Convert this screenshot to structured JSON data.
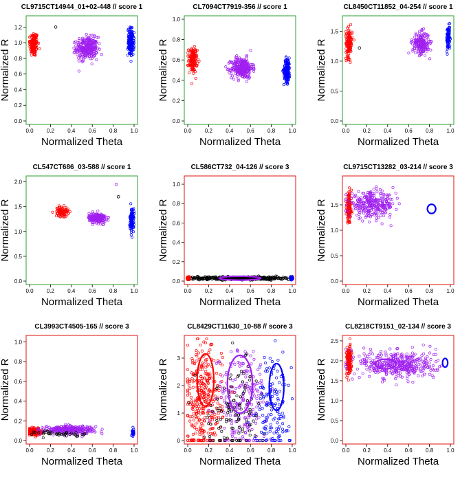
{
  "figure": {
    "description_type": "grid-of-genotype-cluster-plots",
    "colors": {
      "AA": "#ff0000",
      "AB": "#a020f0",
      "BB": "#0000ff",
      "unassigned": "#000000",
      "score1_frame": "#4caf50",
      "score3_frame": "#e53935"
    }
  },
  "chart_data": [
    {
      "type": "scatter",
      "title": "CL9715CT14944_01+02-448  // score  1",
      "xlabel": "Normalized Theta",
      "ylabel": "Normalized R",
      "xlim": [
        0,
        1
      ],
      "ylim": [
        0,
        1.3
      ],
      "xticks": [
        "0.0",
        "0.2",
        "0.4",
        "0.6",
        "0.8",
        "1.0"
      ],
      "yticks": [
        "0.0",
        "0.2",
        "0.4",
        "0.6",
        "0.8",
        "1.0",
        "1.2"
      ],
      "frame": "score1",
      "clusters": [
        {
          "name": "AA",
          "color": "#ff0000",
          "theta": 0.04,
          "r": 0.98,
          "sd_theta": 0.02,
          "sd_r": 0.08,
          "n": 150
        },
        {
          "name": "AB",
          "color": "#a020f0",
          "theta": 0.55,
          "r": 0.93,
          "sd_theta": 0.05,
          "sd_r": 0.07,
          "n": 300
        },
        {
          "name": "BB",
          "color": "#0000ff",
          "theta": 0.97,
          "r": 1.01,
          "sd_theta": 0.015,
          "sd_r": 0.09,
          "n": 150
        }
      ],
      "outliers": [
        {
          "theta": 0.25,
          "r": 1.2,
          "color": "#000000"
        }
      ],
      "ellipses": []
    },
    {
      "type": "scatter",
      "title": "CL7094CT7919-356  // score  1",
      "xlabel": "Normalized Theta",
      "ylabel": "Normalized R",
      "xlim": [
        0,
        1
      ],
      "ylim": [
        0,
        1.0
      ],
      "xticks": [
        "0.0",
        "0.2",
        "0.4",
        "0.6",
        "0.8",
        "1.0"
      ],
      "yticks": [
        "0.0",
        "0.2",
        "0.4",
        "0.6",
        "0.8",
        "1.0"
      ],
      "frame": "score1",
      "clusters": [
        {
          "name": "AA",
          "color": "#ff0000",
          "theta": 0.05,
          "r": 0.6,
          "sd_theta": 0.02,
          "sd_r": 0.06,
          "n": 150
        },
        {
          "name": "AB",
          "color": "#a020f0",
          "theta": 0.52,
          "r": 0.52,
          "sd_theta": 0.05,
          "sd_r": 0.05,
          "n": 300
        },
        {
          "name": "BB",
          "color": "#0000ff",
          "theta": 0.95,
          "r": 0.5,
          "sd_theta": 0.015,
          "sd_r": 0.06,
          "n": 150
        }
      ],
      "outliers": [],
      "ellipses": []
    },
    {
      "type": "scatter",
      "title": "CL8450CT11852_04-254  // score  1",
      "xlabel": "Normalized Theta",
      "ylabel": "Normalized R",
      "xlim": [
        0,
        1
      ],
      "ylim": [
        0,
        1.7
      ],
      "xticks": [
        "0.0",
        "0.2",
        "0.4",
        "0.6",
        "0.8",
        "1.0"
      ],
      "yticks": [
        "0.0",
        "0.5",
        "1.0",
        "1.5"
      ],
      "frame": "score1",
      "clusters": [
        {
          "name": "AA",
          "color": "#ff0000",
          "theta": 0.03,
          "r": 1.3,
          "sd_theta": 0.015,
          "sd_r": 0.12,
          "n": 130
        },
        {
          "name": "AB",
          "color": "#a020f0",
          "theta": 0.72,
          "r": 1.3,
          "sd_theta": 0.04,
          "sd_r": 0.09,
          "n": 200
        },
        {
          "name": "BB",
          "color": "#0000ff",
          "theta": 0.98,
          "r": 1.38,
          "sd_theta": 0.008,
          "sd_r": 0.1,
          "n": 100
        }
      ],
      "outliers": [
        {
          "theta": 0.13,
          "r": 1.22,
          "color": "#000000"
        }
      ],
      "ellipses": []
    },
    {
      "type": "scatter",
      "title": "CL547CT686_03-588  // score  1",
      "xlabel": "Normalized Theta",
      "ylabel": "Normalized R",
      "xlim": [
        0,
        1
      ],
      "ylim": [
        0,
        2.05
      ],
      "xticks": [
        "0.0",
        "0.2",
        "0.4",
        "0.6",
        "0.8",
        "1.0"
      ],
      "yticks": [
        "0.0",
        "0.5",
        "1.0",
        "1.5",
        "2.0"
      ],
      "frame": "score1",
      "clusters": [
        {
          "name": "AA",
          "color": "#ff0000",
          "theta": 0.31,
          "r": 1.4,
          "sd_theta": 0.03,
          "sd_r": 0.05,
          "n": 90
        },
        {
          "name": "AB",
          "color": "#a020f0",
          "theta": 0.65,
          "r": 1.27,
          "sd_theta": 0.04,
          "sd_r": 0.05,
          "n": 200
        },
        {
          "name": "BB",
          "color": "#0000ff",
          "theta": 0.98,
          "r": 1.23,
          "sd_theta": 0.01,
          "sd_r": 0.12,
          "n": 100
        }
      ],
      "outliers": [
        {
          "theta": 0.85,
          "r": 1.7,
          "color": "#000000"
        },
        {
          "theta": 0.83,
          "r": 1.95,
          "color": "#a020f0"
        }
      ],
      "ellipses": []
    },
    {
      "type": "scatter",
      "title": "CL586CT732_04-126  // score  3",
      "xlabel": "Normalized Theta",
      "ylabel": "Normalized R",
      "xlim": [
        0,
        1
      ],
      "ylim": [
        0,
        1.05
      ],
      "xticks": [
        "0.0",
        "0.2",
        "0.4",
        "0.6",
        "0.8",
        "1.0"
      ],
      "yticks": [
        "0.0",
        "0.2",
        "0.4",
        "0.6",
        "0.8",
        "1.0"
      ],
      "frame": "score3",
      "clusters": [
        {
          "name": "unassigned",
          "color": "#000000",
          "theta": 0.5,
          "r": 0.03,
          "sd_theta": 0.26,
          "sd_r": 0.008,
          "n": 500
        },
        {
          "name": "AA",
          "color": "#ff0000",
          "theta": 0.01,
          "r": 0.03,
          "sd_theta": 0.004,
          "sd_r": 0.008,
          "n": 40
        },
        {
          "name": "BB",
          "color": "#0000ff",
          "theta": 0.99,
          "r": 0.03,
          "sd_theta": 0.004,
          "sd_r": 0.008,
          "n": 40
        }
      ],
      "outliers": [],
      "ellipses": [
        {
          "color": "#a020f0",
          "theta": 0.5,
          "r": 0.03,
          "rx": 0.2,
          "ry": 0.02
        },
        {
          "color": "#ff0000",
          "theta": 0.0,
          "r": 0.03,
          "rx": 0.012,
          "ry": 0.02
        },
        {
          "color": "#0000ff",
          "theta": 1.0,
          "r": 0.03,
          "rx": 0.012,
          "ry": 0.02
        }
      ]
    },
    {
      "type": "scatter",
      "title": "CL9715CT13282_03-214  // score  3",
      "xlabel": "Normalized Theta",
      "ylabel": "Normalized R",
      "xlim": [
        0,
        1
      ],
      "ylim": [
        0,
        2.0
      ],
      "xticks": [
        "0.0",
        "0.2",
        "0.4",
        "0.6",
        "0.8",
        "1.0"
      ],
      "yticks": [
        "0.0",
        "0.5",
        "1.0",
        "1.5"
      ],
      "frame": "score3",
      "clusters": [
        {
          "name": "AA",
          "color": "#ff0000",
          "theta": 0.03,
          "r": 1.45,
          "sd_theta": 0.012,
          "sd_r": 0.15,
          "n": 150
        },
        {
          "name": "AB",
          "color": "#a020f0",
          "theta": 0.25,
          "r": 1.5,
          "sd_theta": 0.11,
          "sd_r": 0.12,
          "n": 300
        }
      ],
      "outliers": [],
      "ellipses": [
        {
          "color": "#0000ff",
          "theta": 0.82,
          "r": 1.42,
          "rx": 0.04,
          "ry": 0.09
        }
      ]
    },
    {
      "type": "scatter",
      "title": "CL3993CT4505-165  // score  3",
      "xlabel": "Normalized Theta",
      "ylabel": "Normalized R",
      "xlim": [
        0,
        1
      ],
      "ylim": [
        0,
        1.03
      ],
      "xticks": [
        "0.0",
        "0.2",
        "0.4",
        "0.6",
        "0.8",
        "1.0"
      ],
      "yticks": [
        "0.0",
        "0.2",
        "0.4",
        "0.6",
        "0.8",
        "1.0"
      ],
      "frame": "score3",
      "clusters": [
        {
          "name": "AA",
          "color": "#ff0000",
          "theta": 0.05,
          "r": 0.09,
          "sd_theta": 0.03,
          "sd_r": 0.015,
          "n": 250
        },
        {
          "name": "AB",
          "color": "#a020f0",
          "theta": 0.38,
          "r": 0.11,
          "sd_theta": 0.12,
          "sd_r": 0.02,
          "n": 300
        },
        {
          "name": "unassigned",
          "color": "#000000",
          "theta": 0.3,
          "r": 0.07,
          "sd_theta": 0.12,
          "sd_r": 0.015,
          "n": 40
        },
        {
          "name": "BB",
          "color": "#0000ff",
          "theta": 0.99,
          "r": 0.08,
          "sd_theta": 0.004,
          "sd_r": 0.02,
          "n": 30
        }
      ],
      "outliers": [],
      "ellipses": []
    },
    {
      "type": "scatter",
      "title": "CL8429CT11630_10-88  // score  3",
      "xlabel": "Normalized Theta",
      "ylabel": "Normalized R",
      "xlim": [
        0,
        1
      ],
      "ylim": [
        0,
        3.7
      ],
      "xticks": [
        "0.0",
        "0.2",
        "0.4",
        "0.6",
        "0.8",
        "1.0"
      ],
      "yticks": [
        "0",
        "1",
        "2",
        "3"
      ],
      "frame": "score3",
      "clusters": [
        {
          "name": "AA",
          "color": "#ff0000",
          "theta": 0.15,
          "r": 1.4,
          "sd_theta": 0.09,
          "sd_r": 1.0,
          "n": 350
        },
        {
          "name": "AB",
          "color": "#a020f0",
          "theta": 0.52,
          "r": 1.4,
          "sd_theta": 0.12,
          "sd_r": 1.0,
          "n": 220
        },
        {
          "name": "unassigned",
          "color": "#000000",
          "theta": 0.45,
          "r": 1.1,
          "sd_theta": 0.15,
          "sd_r": 0.8,
          "n": 120
        },
        {
          "name": "BB",
          "color": "#0000ff",
          "theta": 0.82,
          "r": 1.3,
          "sd_theta": 0.08,
          "sd_r": 0.9,
          "n": 150
        }
      ],
      "outliers": [],
      "ellipses": [
        {
          "color": "#ff0000",
          "theta": 0.17,
          "r": 2.2,
          "rx": 0.08,
          "ry": 0.95
        },
        {
          "color": "#a020f0",
          "theta": 0.5,
          "r": 2.05,
          "rx": 0.12,
          "ry": 1.05
        },
        {
          "color": "#0000ff",
          "theta": 0.85,
          "r": 1.95,
          "rx": 0.07,
          "ry": 0.85
        }
      ]
    },
    {
      "type": "scatter",
      "title": "CL8218CT9151_02-134  // score  3",
      "xlabel": "Normalized Theta",
      "ylabel": "Normalized R",
      "xlim": [
        0,
        1
      ],
      "ylim": [
        0,
        2.55
      ],
      "xticks": [
        "0.0",
        "0.2",
        "0.4",
        "0.6",
        "0.8",
        "1.0"
      ],
      "yticks": [
        "0.0",
        "0.5",
        "1.0",
        "1.5",
        "2.0",
        "2.5"
      ],
      "frame": "score3",
      "clusters": [
        {
          "name": "AA",
          "color": "#ff0000",
          "theta": 0.03,
          "r": 2.0,
          "sd_theta": 0.012,
          "sd_r": 0.18,
          "n": 150
        },
        {
          "name": "AB",
          "color": "#a020f0",
          "theta": 0.5,
          "r": 1.9,
          "sd_theta": 0.18,
          "sd_r": 0.18,
          "n": 400
        }
      ],
      "outliers": [],
      "ellipses": [
        {
          "color": "#a020f0",
          "theta": 0.38,
          "r": 1.92,
          "rx": 0.1,
          "ry": 0.12
        },
        {
          "color": "#0000ff",
          "theta": 0.95,
          "r": 1.95,
          "rx": 0.025,
          "ry": 0.11
        }
      ]
    }
  ]
}
